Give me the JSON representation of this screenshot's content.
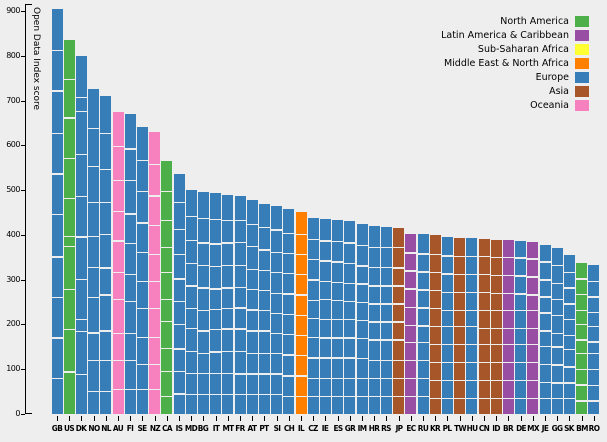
{
  "chart_data": {
    "type": "bar",
    "stacked": true,
    "title": "",
    "xlabel": "",
    "ylabel": "Open Data Index score",
    "ylim": [
      0,
      915
    ],
    "yticks": [
      0,
      100,
      200,
      300,
      400,
      500,
      600,
      700,
      800,
      900
    ],
    "grid": false,
    "legend_position": "top-right",
    "legend": [
      {
        "label": "North America",
        "color": "#4daf4a"
      },
      {
        "label": "Latin America & Caribbean",
        "color": "#984ea3"
      },
      {
        "label": "Sub-Saharan Africa",
        "color": "#ffff33"
      },
      {
        "label": "Middle East & North Africa",
        "color": "#ff7f00"
      },
      {
        "label": "Europe",
        "color": "#377eb8"
      },
      {
        "label": "Asia",
        "color": "#a65628"
      },
      {
        "label": "Oceania",
        "color": "#f781bf"
      }
    ],
    "region_colors": {
      "North America": "#4daf4a",
      "Latin America & Caribbean": "#984ea3",
      "Sub-Saharan Africa": "#ffff33",
      "Middle East & North Africa": "#ff7f00",
      "Europe": "#377eb8",
      "Asia": "#a65628",
      "Oceania": "#f781bf"
    },
    "bars": [
      {
        "code": "GB",
        "region": "Europe",
        "total": 905,
        "segments": [
          95,
          90,
          95,
          90,
          90,
          95,
          90,
          90,
          90,
          80
        ]
      },
      {
        "code": "US",
        "region": "North America",
        "total": 835,
        "segments": [
          90,
          85,
          90,
          90,
          85,
          20,
          95,
          90,
          95,
          95
        ]
      },
      {
        "code": "DK",
        "region": "Europe",
        "total": 800,
        "segments": [
          95,
          30,
          95,
          95,
          90,
          95,
          90,
          25,
          95,
          90
        ]
      },
      {
        "code": "NO",
        "region": "Europe",
        "total": 725,
        "segments": [
          90,
          85,
          80,
          75,
          70,
          65,
          80,
          60,
          70,
          50
        ]
      },
      {
        "code": "NL",
        "region": "Europe",
        "total": 710,
        "segments": [
          85,
          80,
          75,
          70,
          75,
          60,
          80,
          65,
          70,
          50
        ]
      },
      {
        "code": "AU",
        "region": "Oceania",
        "total": 675,
        "segments": [
          80,
          75,
          70,
          65,
          70,
          60,
          75,
          60,
          65,
          55
        ]
      },
      {
        "code": "FI",
        "region": "Europe",
        "total": 670,
        "segments": [
          80,
          70,
          75,
          65,
          70,
          60,
          70,
          60,
          65,
          55
        ]
      },
      {
        "code": "SE",
        "region": "Europe",
        "total": 640,
        "segments": [
          75,
          70,
          70,
          65,
          65,
          60,
          65,
          60,
          55,
          55
        ]
      },
      {
        "code": "NZ",
        "region": "Oceania",
        "total": 630,
        "segments": [
          75,
          70,
          65,
          65,
          60,
          60,
          65,
          60,
          55,
          55
        ]
      },
      {
        "code": "CA",
        "region": "North America",
        "total": 565,
        "segments": [
          70,
          65,
          60,
          55,
          60,
          50,
          60,
          50,
          55,
          40
        ]
      },
      {
        "code": "IS",
        "region": "Europe",
        "total": 535,
        "segments": [
          65,
          60,
          55,
          55,
          50,
          50,
          55,
          50,
          50,
          45
        ]
      },
      {
        "code": "MD",
        "region": "Europe",
        "total": 500,
        "segments": [
          60,
          55,
          50,
          50,
          50,
          45,
          50,
          50,
          45,
          45
        ]
      },
      {
        "code": "BG",
        "region": "Europe",
        "total": 495,
        "segments": [
          60,
          55,
          50,
          50,
          50,
          45,
          50,
          45,
          45,
          45
        ]
      },
      {
        "code": "IT",
        "region": "Europe",
        "total": 493,
        "segments": [
          60,
          55,
          50,
          50,
          45,
          45,
          50,
          48,
          45,
          45
        ]
      },
      {
        "code": "MT",
        "region": "Europe",
        "total": 490,
        "segments": [
          60,
          50,
          50,
          50,
          45,
          45,
          50,
          50,
          45,
          45
        ]
      },
      {
        "code": "FR",
        "region": "Europe",
        "total": 486,
        "segments": [
          55,
          50,
          50,
          50,
          45,
          46,
          50,
          50,
          45,
          45
        ]
      },
      {
        "code": "AT",
        "region": "Europe",
        "total": 477,
        "segments": [
          55,
          50,
          50,
          45,
          45,
          47,
          50,
          45,
          45,
          45
        ]
      },
      {
        "code": "PT",
        "region": "Europe",
        "total": 470,
        "segments": [
          55,
          50,
          45,
          45,
          45,
          45,
          50,
          45,
          45,
          45
        ]
      },
      {
        "code": "SI",
        "region": "Europe",
        "total": 464,
        "segments": [
          55,
          50,
          45,
          45,
          45,
          44,
          45,
          45,
          45,
          45
        ]
      },
      {
        "code": "CH",
        "region": "Europe",
        "total": 457,
        "segments": [
          55,
          45,
          45,
          45,
          45,
          45,
          45,
          47,
          45,
          40
        ]
      },
      {
        "code": "IL",
        "region": "Middle East & North Africa",
        "total": 450,
        "segments": [
          50,
          45,
          45,
          45,
          45,
          45,
          45,
          45,
          45,
          40
        ]
      },
      {
        "code": "CZ",
        "region": "Europe",
        "total": 438,
        "segments": [
          50,
          45,
          45,
          45,
          40,
          43,
          45,
          45,
          40,
          40
        ]
      },
      {
        "code": "IE",
        "region": "Europe",
        "total": 435,
        "segments": [
          50,
          45,
          45,
          40,
          45,
          40,
          45,
          45,
          40,
          40
        ]
      },
      {
        "code": "ES",
        "region": "Europe",
        "total": 433,
        "segments": [
          50,
          45,
          45,
          40,
          43,
          40,
          45,
          45,
          40,
          40
        ]
      },
      {
        "code": "GR",
        "region": "Europe",
        "total": 430,
        "segments": [
          50,
          45,
          45,
          40,
          40,
          40,
          45,
          45,
          40,
          40
        ]
      },
      {
        "code": "IM",
        "region": "Europe",
        "total": 424,
        "segments": [
          50,
          45,
          40,
          40,
          40,
          40,
          45,
          44,
          40,
          40
        ]
      },
      {
        "code": "HR",
        "region": "Europe",
        "total": 420,
        "segments": [
          50,
          45,
          40,
          40,
          40,
          40,
          45,
          40,
          40,
          40
        ]
      },
      {
        "code": "RS",
        "region": "Europe",
        "total": 418,
        "segments": [
          48,
          45,
          40,
          40,
          40,
          40,
          45,
          40,
          40,
          40
        ]
      },
      {
        "code": "JP",
        "region": "Asia",
        "total": 415,
        "segments": [
          45,
          45,
          40,
          40,
          40,
          40,
          45,
          40,
          40,
          40
        ]
      },
      {
        "code": "EC",
        "region": "Latin America & Caribbean",
        "total": 403,
        "segments": [
          45,
          40,
          40,
          40,
          40,
          38,
          40,
          40,
          40,
          40
        ]
      },
      {
        "code": "RU",
        "region": "Europe",
        "total": 401,
        "segments": [
          45,
          40,
          40,
          40,
          40,
          36,
          40,
          40,
          40,
          40
        ]
      },
      {
        "code": "KR",
        "region": "Asia",
        "total": 400,
        "segments": [
          45,
          40,
          40,
          40,
          40,
          40,
          40,
          40,
          40,
          35
        ]
      },
      {
        "code": "PL",
        "region": "Europe",
        "total": 396,
        "segments": [
          45,
          40,
          40,
          40,
          36,
          40,
          40,
          40,
          40,
          35
        ]
      },
      {
        "code": "TW",
        "region": "Asia",
        "total": 394,
        "segments": [
          44,
          40,
          40,
          40,
          35,
          40,
          40,
          40,
          40,
          35
        ]
      },
      {
        "code": "HU",
        "region": "Europe",
        "total": 392,
        "segments": [
          42,
          40,
          40,
          40,
          35,
          40,
          40,
          40,
          40,
          35
        ]
      },
      {
        "code": "CN",
        "region": "Asia",
        "total": 390,
        "segments": [
          40,
          40,
          40,
          40,
          40,
          35,
          40,
          40,
          40,
          35
        ]
      },
      {
        "code": "ID",
        "region": "Asia",
        "total": 389,
        "segments": [
          40,
          40,
          40,
          39,
          40,
          35,
          40,
          40,
          40,
          35
        ]
      },
      {
        "code": "BR",
        "region": "Latin America & Caribbean",
        "total": 388,
        "segments": [
          40,
          40,
          40,
          38,
          40,
          35,
          40,
          40,
          40,
          35
        ]
      },
      {
        "code": "DE",
        "region": "Europe",
        "total": 387,
        "segments": [
          40,
          40,
          40,
          37,
          40,
          35,
          40,
          40,
          40,
          35
        ]
      },
      {
        "code": "MX",
        "region": "Latin America & Caribbean",
        "total": 385,
        "segments": [
          40,
          40,
          40,
          35,
          40,
          35,
          40,
          40,
          40,
          35
        ]
      },
      {
        "code": "JE",
        "region": "Europe",
        "total": 378,
        "segments": [
          40,
          40,
          38,
          35,
          40,
          35,
          40,
          40,
          35,
          35
        ]
      },
      {
        "code": "GG",
        "region": "Europe",
        "total": 370,
        "segments": [
          40,
          40,
          35,
          35,
          40,
          30,
          40,
          40,
          35,
          35
        ]
      },
      {
        "code": "SK",
        "region": "Europe",
        "total": 355,
        "segments": [
          40,
          35,
          35,
          35,
          35,
          30,
          40,
          35,
          35,
          35
        ]
      },
      {
        "code": "BM",
        "region": "North America",
        "total": 338,
        "segments": [
          38,
          35,
          35,
          30,
          35,
          30,
          35,
          35,
          35,
          30
        ]
      },
      {
        "code": "RO",
        "region": "Europe",
        "total": 333,
        "segments": [
          38,
          35,
          35,
          30,
          35,
          25,
          35,
          35,
          35,
          30
        ]
      }
    ]
  }
}
